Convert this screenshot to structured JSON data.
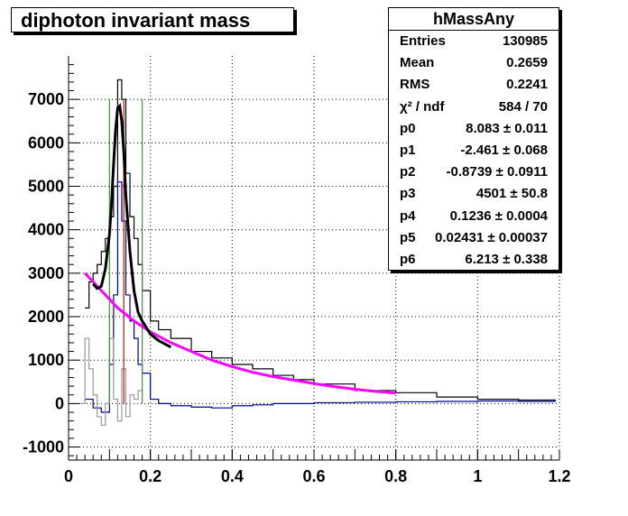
{
  "chart_data": {
    "type": "histogram",
    "title": "diphoton invariant mass",
    "xlim": [
      0,
      1.2
    ],
    "ylim": [
      -1300,
      8000
    ],
    "x_ticks": [
      "0",
      "0.2",
      "0.4",
      "0.6",
      "0.8",
      "1",
      "1.2"
    ],
    "y_ticks": [
      "-1000",
      "0",
      "1000",
      "2000",
      "3000",
      "4000",
      "5000",
      "6000",
      "7000"
    ],
    "grid": true,
    "stats": {
      "title": "hMassAny",
      "rows": [
        {
          "name": "Entries",
          "value": "130985"
        },
        {
          "name": "Mean",
          "value": "0.2659"
        },
        {
          "name": "RMS",
          "value": "0.2241"
        },
        {
          "name": "χ² / ndf",
          "value": "584 / 70"
        },
        {
          "name": "p0",
          "value": "8.083 ± 0.011"
        },
        {
          "name": "p1",
          "value": "-2.461 ± 0.068"
        },
        {
          "name": "p2",
          "value": "-0.8739 ± 0.0911"
        },
        {
          "name": "p3",
          "value": "4501 ± 50.8"
        },
        {
          "name": "p4",
          "value": "0.1236 ± 0.0004"
        },
        {
          "name": "p5",
          "value": "0.02431 ± 0.00037"
        },
        {
          "name": "p6",
          "value": "6.213 ± 0.338"
        }
      ]
    },
    "series": [
      {
        "color": "#000000",
        "x": [
          0.04,
          0.05,
          0.06,
          0.07,
          0.08,
          0.09,
          0.1,
          0.11,
          0.12,
          0.13,
          0.14,
          0.15,
          0.16,
          0.17,
          0.18,
          0.2,
          0.22,
          0.25,
          0.3,
          0.35,
          0.4,
          0.45,
          0.5,
          0.55,
          0.6,
          0.7,
          0.8,
          0.9,
          1.0,
          1.1,
          1.19
        ],
        "y": [
          2200,
          2800,
          3000,
          3200,
          3500,
          3800,
          4300,
          5000,
          7450,
          7000,
          5300,
          4300,
          3800,
          3200,
          2600,
          1900,
          1700,
          1500,
          1200,
          1050,
          900,
          800,
          650,
          550,
          450,
          300,
          250,
          150,
          100,
          80,
          60
        ]
      },
      {
        "color": "#00008b",
        "x": [
          0.04,
          0.06,
          0.08,
          0.1,
          0.11,
          0.12,
          0.13,
          0.14,
          0.15,
          0.16,
          0.17,
          0.18,
          0.2,
          0.22,
          0.25,
          0.3,
          0.35,
          0.4,
          0.45,
          0.5,
          0.6,
          0.7,
          0.8,
          0.9,
          1.0,
          1.1,
          1.19
        ],
        "y": [
          100,
          -100,
          -200,
          900,
          2500,
          5100,
          4200,
          2500,
          1900,
          1500,
          900,
          700,
          100,
          0,
          -50,
          -80,
          -100,
          -50,
          -30,
          0,
          20,
          30,
          40,
          50,
          60,
          50,
          50
        ]
      },
      {
        "color": "#999999",
        "x": [
          0.03,
          0.04,
          0.05,
          0.06,
          0.07,
          0.08,
          0.09,
          0.1,
          0.11,
          0.12,
          0.13,
          0.14,
          0.15,
          0.16,
          0.17,
          0.18
        ],
        "y": [
          0,
          1500,
          800,
          200,
          -300,
          -500,
          0,
          1500,
          100,
          -400,
          800,
          -300,
          200,
          100,
          300,
          200
        ]
      }
    ],
    "fit_curve": {
      "color": "#000000",
      "x": [
        0.06,
        0.07,
        0.08,
        0.09,
        0.1,
        0.105,
        0.11,
        0.115,
        0.12,
        0.125,
        0.13,
        0.135,
        0.14,
        0.15,
        0.16,
        0.17,
        0.18,
        0.2,
        0.22,
        0.25
      ],
      "y": [
        2750,
        2650,
        2700,
        3100,
        3900,
        4600,
        5500,
        6300,
        6800,
        6850,
        6500,
        5800,
        4800,
        3500,
        2600,
        2100,
        1900,
        1600,
        1450,
        1300
      ]
    },
    "background_curve": {
      "color": "#ff00ff",
      "x": [
        0.04,
        0.08,
        0.12,
        0.16,
        0.2,
        0.25,
        0.3,
        0.35,
        0.4,
        0.45,
        0.5,
        0.55,
        0.6,
        0.65,
        0.7,
        0.75,
        0.8
      ],
      "y": [
        3000,
        2600,
        2200,
        1900,
        1650,
        1400,
        1200,
        1000,
        850,
        720,
        620,
        540,
        460,
        390,
        330,
        280,
        240
      ]
    },
    "markers": {
      "green": [
        0.1,
        0.18
      ],
      "red": 0.135,
      "marker_top": 7000
    }
  }
}
